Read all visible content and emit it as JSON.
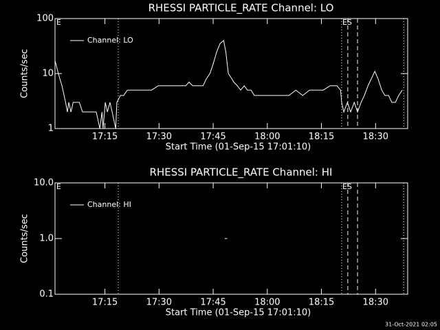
{
  "chart_data": [
    {
      "type": "line",
      "title": "RHESSI PARTICLE_RATE Channel: LO",
      "x_label": "Start Time (01-Sep-15 17:01:10)",
      "y_label": "Counts/sec",
      "log_y": true,
      "legend": "top-left",
      "annotations": [
        "E",
        "ES"
      ],
      "xlim": [
        1.17,
        98.9
      ],
      "ylim": [
        1,
        100
      ],
      "xticks": [
        {
          "value": 15,
          "label": "17:15"
        },
        {
          "value": 30,
          "label": "17:30"
        },
        {
          "value": 45,
          "label": "17:45"
        },
        {
          "value": 60,
          "label": "18:00"
        },
        {
          "value": 75,
          "label": "18:15"
        },
        {
          "value": 90,
          "label": "18:30"
        }
      ],
      "yticks": [
        1,
        10,
        100
      ],
      "vlines": [
        {
          "x": 18.7,
          "style": "dotted"
        },
        {
          "x": 80.6,
          "style": "dotted"
        },
        {
          "x": 82.3,
          "style": "dashed"
        },
        {
          "x": 85.0,
          "style": "dashed"
        },
        {
          "x": 97.8,
          "style": "dotted"
        }
      ],
      "series": [
        {
          "name": "Channel: LO",
          "color": "#ffffff",
          "x": [
            1.2,
            2.1,
            3.1,
            4.1,
            4.6,
            5.0,
            5.6,
            6.2,
            6.9,
            7.9,
            8.8,
            9.8,
            10.7,
            12.6,
            13.6,
            14.2,
            14.5,
            15.1,
            15.7,
            16.4,
            17.0,
            18.0,
            18.3,
            19.3,
            20.2,
            21.2,
            22.2,
            23.1,
            24.1,
            26.0,
            27.9,
            29.8,
            31.7,
            33.6,
            35.5,
            37.4,
            38.3,
            39.3,
            40.2,
            41.2,
            42.2,
            43.1,
            44.1,
            45.0,
            46.0,
            46.9,
            47.9,
            48.5,
            49.2,
            50.2,
            50.7,
            51.7,
            52.6,
            53.6,
            54.5,
            55.5,
            56.4,
            58.4,
            60.3,
            62.2,
            64.1,
            66.0,
            67.9,
            69.8,
            71.7,
            73.6,
            75.5,
            77.4,
            79.3,
            80.3,
            80.6,
            81.2,
            82.2,
            83.1,
            84.1,
            85.0,
            86.0,
            86.9,
            87.9,
            88.8,
            89.8,
            90.7,
            91.7,
            92.6,
            93.6,
            94.5,
            95.5,
            96.4,
            97.4
          ],
          "values": [
            17,
            10,
            6,
            3,
            2,
            3,
            2,
            3,
            3,
            3,
            2,
            2,
            2,
            2,
            1,
            2,
            1,
            3,
            2,
            3,
            2,
            1,
            3,
            4,
            4,
            5,
            5,
            5,
            5,
            5,
            5,
            6,
            6,
            6,
            6,
            6,
            7,
            6,
            6,
            6,
            6,
            8,
            10,
            15,
            25,
            35,
            40,
            25,
            10,
            8,
            7,
            6,
            5,
            6,
            5,
            5,
            4,
            4,
            4,
            4,
            4,
            4,
            5,
            4,
            5,
            5,
            5,
            6,
            6,
            5,
            3,
            2,
            3,
            2,
            3,
            2,
            3,
            4,
            6,
            8,
            11,
            8,
            5,
            4,
            4,
            3,
            3,
            4,
            5
          ]
        }
      ]
    },
    {
      "type": "line",
      "title": "RHESSI PARTICLE_RATE Channel: HI",
      "x_label": "Start Time (01-Sep-15 17:01:10)",
      "y_label": "Counts/sec",
      "log_y": true,
      "legend": "top-left",
      "annotations": [
        "E",
        "ES"
      ],
      "xlim": [
        1.17,
        98.9
      ],
      "ylim": [
        0.1,
        10
      ],
      "xticks": [
        {
          "value": 15,
          "label": "17:15"
        },
        {
          "value": 30,
          "label": "17:30"
        },
        {
          "value": 45,
          "label": "17:45"
        },
        {
          "value": 60,
          "label": "18:00"
        },
        {
          "value": 75,
          "label": "18:15"
        },
        {
          "value": 90,
          "label": "18:30"
        }
      ],
      "yticks": [
        0.1,
        {
          "value": 1,
          "label": "1.0"
        },
        {
          "value": 10,
          "label": "10.0"
        }
      ],
      "vlines": [
        {
          "x": 18.7,
          "style": "dotted"
        },
        {
          "x": 80.6,
          "style": "dotted"
        },
        {
          "x": 82.3,
          "style": "dashed"
        },
        {
          "x": 85.0,
          "style": "dashed"
        },
        {
          "x": 97.8,
          "style": "dotted"
        }
      ],
      "series": [
        {
          "name": "Channel: HI",
          "color": "#ffffff",
          "x": [
            48.2,
            48.9
          ],
          "values": [
            1,
            1
          ]
        }
      ]
    }
  ],
  "timestamp": "31-Oct-2021 02:05"
}
